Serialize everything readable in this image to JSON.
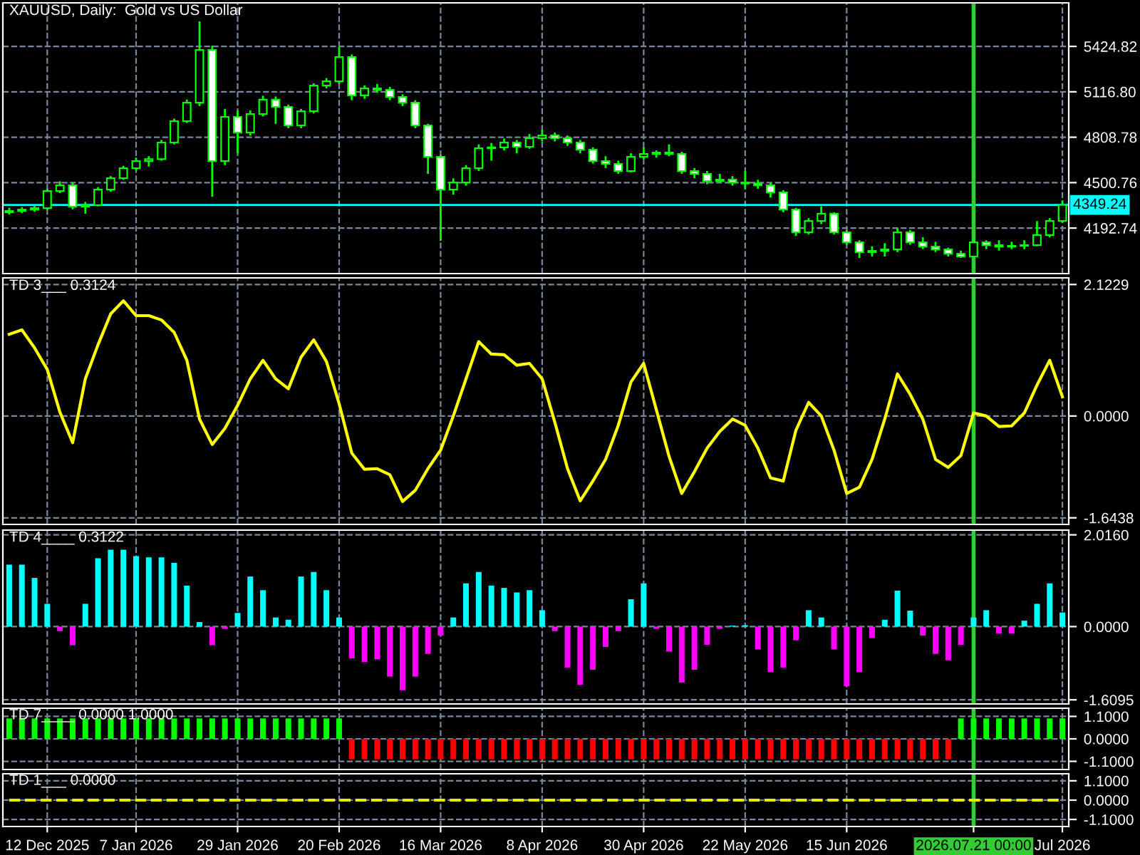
{
  "chart_data": [
    {
      "type": "candlestick",
      "title": "XAUUSD, Daily:  Gold vs US Dollar",
      "categories": [
        null,
        null,
        null,
        "12 Dec 2025",
        null,
        null,
        null,
        null,
        null,
        null,
        "7 Jan 2026",
        null,
        null,
        null,
        null,
        null,
        null,
        null,
        "29 Jan 2026",
        null,
        null,
        null,
        null,
        null,
        null,
        null,
        "20 Feb 2026",
        null,
        null,
        null,
        null,
        null,
        null,
        null,
        "16 Mar 2026",
        null,
        null,
        null,
        null,
        null,
        null,
        null,
        "8 Apr 2026",
        null,
        null,
        null,
        null,
        null,
        null,
        null,
        "30 Apr 2026",
        null,
        null,
        null,
        null,
        null,
        null,
        null,
        "22 May 2026",
        null,
        null,
        null,
        null,
        null,
        null,
        null,
        "15 Jun 2026",
        null,
        null,
        null,
        null,
        null,
        null,
        null,
        null,
        null,
        "2026.07.21 00:00",
        null,
        null,
        null,
        null,
        null,
        null,
        "Jul 2026"
      ],
      "ohlc": [
        [
          4300,
          4330,
          4285,
          4309
        ],
        [
          4309,
          4335,
          4295,
          4318
        ],
        [
          4318,
          4345,
          4305,
          4328
        ],
        [
          4328,
          4460,
          4315,
          4444
        ],
        [
          4444,
          4510,
          4430,
          4483
        ],
        [
          4483,
          4500,
          4320,
          4338
        ],
        [
          4338,
          4370,
          4290,
          4348
        ],
        [
          4348,
          4470,
          4340,
          4454
        ],
        [
          4454,
          4545,
          4440,
          4531
        ],
        [
          4531,
          4615,
          4520,
          4599
        ],
        [
          4599,
          4670,
          4585,
          4647
        ],
        [
          4647,
          4680,
          4610,
          4660
        ],
        [
          4660,
          4790,
          4650,
          4773
        ],
        [
          4773,
          4935,
          4760,
          4918
        ],
        [
          4918,
          5065,
          4905,
          5043
        ],
        [
          5043,
          5594,
          5020,
          5400
        ],
        [
          5400,
          5430,
          4405,
          4647
        ],
        [
          4647,
          5000,
          4620,
          4947
        ],
        [
          4947,
          4990,
          4700,
          4840
        ],
        [
          4840,
          4990,
          4820,
          4966
        ],
        [
          4966,
          5090,
          4950,
          5063
        ],
        [
          5063,
          5085,
          4900,
          5014
        ],
        [
          5014,
          5030,
          4870,
          4889
        ],
        [
          4889,
          5000,
          4870,
          4985
        ],
        [
          4985,
          5175,
          4970,
          5159
        ],
        [
          5159,
          5210,
          5140,
          5188
        ],
        [
          5188,
          5420,
          5170,
          5352
        ],
        [
          5352,
          5370,
          5060,
          5092
        ],
        [
          5092,
          5160,
          5070,
          5140
        ],
        [
          5140,
          5170,
          5110,
          5130
        ],
        [
          5130,
          5150,
          5060,
          5082
        ],
        [
          5082,
          5100,
          5020,
          5043
        ],
        [
          5043,
          5060,
          4870,
          4889
        ],
        [
          4889,
          4900,
          4560,
          4676
        ],
        [
          4676,
          4690,
          4106,
          4454
        ],
        [
          4454,
          4530,
          4420,
          4502
        ],
        [
          4502,
          4620,
          4480,
          4599
        ],
        [
          4599,
          4760,
          4580,
          4734
        ],
        [
          4734,
          4770,
          4650,
          4740
        ],
        [
          4740,
          4800,
          4720,
          4773
        ],
        [
          4773,
          4790,
          4700,
          4744
        ],
        [
          4744,
          4830,
          4730,
          4802
        ],
        [
          4802,
          4860,
          4780,
          4821
        ],
        [
          4821,
          4840,
          4780,
          4802
        ],
        [
          4802,
          4820,
          4750,
          4773
        ],
        [
          4773,
          4790,
          4700,
          4724
        ],
        [
          4724,
          4740,
          4630,
          4647
        ],
        [
          4647,
          4680,
          4600,
          4628
        ],
        [
          4628,
          4650,
          4560,
          4579
        ],
        [
          4579,
          4700,
          4570,
          4676
        ],
        [
          4676,
          4740,
          4660,
          4695
        ],
        [
          4695,
          4720,
          4670,
          4705
        ],
        [
          4705,
          4760,
          4680,
          4695
        ],
        [
          4695,
          4710,
          4560,
          4579
        ],
        [
          4579,
          4600,
          4530,
          4560
        ],
        [
          4560,
          4580,
          4490,
          4512
        ],
        [
          4512,
          4560,
          4500,
          4521
        ],
        [
          4521,
          4545,
          4480,
          4502
        ],
        [
          4502,
          4580,
          4460,
          4495
        ],
        [
          4495,
          4520,
          4460,
          4483
        ],
        [
          4483,
          4500,
          4400,
          4434
        ],
        [
          4434,
          4450,
          4300,
          4318
        ],
        [
          4318,
          4330,
          4140,
          4164
        ],
        [
          4164,
          4260,
          4150,
          4241
        ],
        [
          4241,
          4340,
          4220,
          4290
        ],
        [
          4290,
          4300,
          4150,
          4164
        ],
        [
          4164,
          4180,
          4080,
          4096
        ],
        [
          4096,
          4110,
          3990,
          4029
        ],
        [
          4029,
          4070,
          4000,
          4038
        ],
        [
          4038,
          4090,
          4000,
          4048
        ],
        [
          4048,
          4190,
          4030,
          4164
        ],
        [
          4164,
          4180,
          4080,
          4096
        ],
        [
          4096,
          4130,
          4050,
          4067
        ],
        [
          4067,
          4100,
          4030,
          4048
        ],
        [
          4048,
          4060,
          4000,
          4019
        ],
        [
          4019,
          4040,
          3990,
          4000
        ],
        [
          4000,
          4120,
          3990,
          4096
        ],
        [
          4096,
          4110,
          4050,
          4077
        ],
        [
          4077,
          4110,
          4040,
          4067
        ],
        [
          4067,
          4100,
          4050,
          4072
        ],
        [
          4072,
          4110,
          4050,
          4077
        ],
        [
          4077,
          4240,
          4070,
          4145
        ],
        [
          4145,
          4260,
          4130,
          4241
        ],
        [
          4241,
          4380,
          4230,
          4349
        ]
      ],
      "color": "#00ff00",
      "ylim": [
        3884,
        5720
      ],
      "yticks": [
        5424.82,
        {
          "value": 5116.8,
          "label": "5116.80"
        },
        4808.78,
        4500.76,
        4192.74
      ],
      "grid": true,
      "tick_labels": "y",
      "ref_lines": [
        {
          "axis": "y",
          "value": 4349.24,
          "label": "4349.24",
          "color": "#00ffff"
        },
        {
          "axis": "x",
          "value": "2026.07.21 00:00",
          "color": "#32cd32"
        }
      ]
    },
    {
      "type": "line",
      "title": "TD 3___ 0.3124",
      "categories": [
        null,
        null,
        null,
        "12 Dec 2025",
        null,
        null,
        null,
        null,
        null,
        null,
        "7 Jan 2026",
        null,
        null,
        null,
        null,
        null,
        null,
        null,
        "29 Jan 2026",
        null,
        null,
        null,
        null,
        null,
        null,
        null,
        "20 Feb 2026",
        null,
        null,
        null,
        null,
        null,
        null,
        null,
        "16 Mar 2026",
        null,
        null,
        null,
        null,
        null,
        null,
        null,
        "8 Apr 2026",
        null,
        null,
        null,
        null,
        null,
        null,
        null,
        "30 Apr 2026",
        null,
        null,
        null,
        null,
        null,
        null,
        null,
        "22 May 2026",
        null,
        null,
        null,
        null,
        null,
        null,
        null,
        "15 Jun 2026",
        null,
        null,
        null,
        null,
        null,
        null,
        null,
        null,
        null,
        "2026.07.21 00:00",
        null,
        null,
        null,
        null,
        null,
        null,
        "Jul 2026"
      ],
      "series": [
        {
          "color": "#ffff00",
          "values": [
            1.32,
            1.39,
            1.1,
            0.75,
            0.06,
            -0.43,
            0.6,
            1.15,
            1.65,
            1.86,
            1.62,
            1.62,
            1.55,
            1.35,
            0.9,
            -0.05,
            -0.46,
            -0.2,
            0.17,
            0.6,
            0.9,
            0.6,
            0.44,
            0.95,
            1.23,
            0.88,
            0.2,
            -0.6,
            -0.86,
            -0.85,
            -0.95,
            -1.38,
            -1.2,
            -0.85,
            -0.55,
            0.0,
            0.6,
            1.2,
            1.0,
            0.99,
            0.82,
            0.85,
            0.6,
            -0.1,
            -0.85,
            -1.37,
            -1.05,
            -0.7,
            -0.15,
            0.55,
            0.85,
            0.1,
            -0.65,
            -1.25,
            -0.9,
            -0.52,
            -0.25,
            -0.05,
            -0.15,
            -0.52,
            -1.0,
            -1.05,
            -0.23,
            0.22,
            0.0,
            -0.55,
            -1.25,
            -1.15,
            -0.7,
            -0.05,
            0.68,
            0.35,
            -0.05,
            -0.7,
            -0.83,
            -0.64,
            0.05,
            0.0,
            -0.17,
            -0.16,
            0.05,
            0.5,
            0.9,
            0.31
          ]
        }
      ],
      "ylim": [
        -1.75,
        2.23
      ],
      "yticks": [
        2.1229,
        {
          "value": 0,
          "label": "0.0000"
        },
        -1.6438
      ],
      "grid": true,
      "tick_labels": "y",
      "line_style": "solid",
      "ref_lines": [
        {
          "axis": "x",
          "value": "2026.07.21 00:00",
          "color": "#32cd32"
        }
      ]
    },
    {
      "type": "bar",
      "title": "TD 4____ 0.3122",
      "categories": [
        null,
        null,
        null,
        "12 Dec 2025",
        null,
        null,
        null,
        null,
        null,
        null,
        "7 Jan 2026",
        null,
        null,
        null,
        null,
        null,
        null,
        null,
        "29 Jan 2026",
        null,
        null,
        null,
        null,
        null,
        null,
        null,
        "20 Feb 2026",
        null,
        null,
        null,
        null,
        null,
        null,
        null,
        "16 Mar 2026",
        null,
        null,
        null,
        null,
        null,
        null,
        null,
        "8 Apr 2026",
        null,
        null,
        null,
        null,
        null,
        null,
        null,
        "30 Apr 2026",
        null,
        null,
        null,
        null,
        null,
        null,
        null,
        "22 May 2026",
        null,
        null,
        null,
        null,
        null,
        null,
        null,
        "15 Jun 2026",
        null,
        null,
        null,
        null,
        null,
        null,
        null,
        null,
        null,
        "2026.07.21 00:00",
        null,
        null,
        null,
        null,
        null,
        null,
        "Jul 2026"
      ],
      "values": [
        1.36,
        1.36,
        1.07,
        0.5,
        -0.1,
        -0.41,
        0.5,
        1.5,
        1.69,
        1.69,
        1.55,
        1.52,
        1.52,
        1.4,
        0.9,
        0.1,
        -0.41,
        -0.05,
        0.3,
        1.1,
        0.8,
        0.2,
        0.15,
        1.1,
        1.2,
        0.8,
        0.2,
        -0.7,
        -0.78,
        -0.72,
        -1.1,
        -1.4,
        -1.1,
        -0.6,
        -0.2,
        0.2,
        0.95,
        1.2,
        0.9,
        0.85,
        0.75,
        0.8,
        0.36,
        -0.1,
        -0.9,
        -1.28,
        -0.95,
        -0.45,
        -0.1,
        0.6,
        0.95,
        -0.05,
        -0.55,
        -1.23,
        -0.95,
        -0.4,
        -0.05,
        0.02,
        0.03,
        -0.5,
        -1.0,
        -0.9,
        -0.3,
        0.36,
        0.2,
        -0.5,
        -1.31,
        -1.0,
        -0.25,
        0.15,
        0.79,
        0.35,
        -0.2,
        -0.6,
        -0.74,
        -0.4,
        0.2,
        0.36,
        -0.15,
        -0.15,
        0.13,
        0.5,
        0.95,
        0.31
      ],
      "colors": [
        "#00ffff",
        "#00ffff",
        "#00ffff",
        "#00ffff",
        "#ff00ff",
        "#ff00ff",
        "#00ffff",
        "#00ffff",
        "#00ffff",
        "#00ffff",
        "#00ffff",
        "#00ffff",
        "#00ffff",
        "#00ffff",
        "#00ffff",
        "#00ffff",
        "#ff00ff",
        "#ff00ff",
        "#00ffff",
        "#00ffff",
        "#00ffff",
        "#00ffff",
        "#00ffff",
        "#00ffff",
        "#00ffff",
        "#00ffff",
        "#00ffff",
        "#ff00ff",
        "#ff00ff",
        "#ff00ff",
        "#ff00ff",
        "#ff00ff",
        "#ff00ff",
        "#ff00ff",
        "#ff00ff",
        "#00ffff",
        "#00ffff",
        "#00ffff",
        "#00ffff",
        "#00ffff",
        "#00ffff",
        "#00ffff",
        "#00ffff",
        "#ff00ff",
        "#ff00ff",
        "#ff00ff",
        "#ff00ff",
        "#ff00ff",
        "#ff00ff",
        "#00ffff",
        "#00ffff",
        "#ff00ff",
        "#ff00ff",
        "#ff00ff",
        "#ff00ff",
        "#ff00ff",
        "#ff00ff",
        "#00ffff",
        "#00ffff",
        "#ff00ff",
        "#ff00ff",
        "#ff00ff",
        "#ff00ff",
        "#00ffff",
        "#00ffff",
        "#ff00ff",
        "#ff00ff",
        "#ff00ff",
        "#ff00ff",
        "#00ffff",
        "#00ffff",
        "#00ffff",
        "#ff00ff",
        "#ff00ff",
        "#ff00ff",
        "#ff00ff",
        "#00ffff",
        "#00ffff",
        "#ff00ff",
        "#ff00ff",
        "#00ffff",
        "#00ffff",
        "#00ffff",
        "#00ffff"
      ],
      "ylim": [
        -1.7,
        2.12
      ],
      "yticks": [
        {
          "value": 2.016,
          "label": "2.0160"
        },
        {
          "value": 0,
          "label": "0.0000"
        },
        -1.6095
      ],
      "grid": true,
      "tick_labels": "y",
      "ref_lines": [
        {
          "axis": "x",
          "value": "2026.07.21 00:00",
          "color": "#32cd32"
        }
      ]
    },
    {
      "type": "bar",
      "title": "TD 7____ 0.0000 1.0000",
      "categories": [
        null,
        null,
        null,
        "12 Dec 2025",
        null,
        null,
        null,
        null,
        null,
        null,
        "7 Jan 2026",
        null,
        null,
        null,
        null,
        null,
        null,
        null,
        "29 Jan 2026",
        null,
        null,
        null,
        null,
        null,
        null,
        null,
        "20 Feb 2026",
        null,
        null,
        null,
        null,
        null,
        null,
        null,
        "16 Mar 2026",
        null,
        null,
        null,
        null,
        null,
        null,
        null,
        "8 Apr 2026",
        null,
        null,
        null,
        null,
        null,
        null,
        null,
        "30 Apr 2026",
        null,
        null,
        null,
        null,
        null,
        null,
        null,
        "22 May 2026",
        null,
        null,
        null,
        null,
        null,
        null,
        null,
        "15 Jun 2026",
        null,
        null,
        null,
        null,
        null,
        null,
        null,
        null,
        null,
        "2026.07.21 00:00",
        null,
        null,
        null,
        null,
        null,
        null,
        "Jul 2026"
      ],
      "values": [
        1,
        1,
        1,
        1,
        1,
        1,
        1,
        1,
        1,
        1,
        1,
        1,
        1,
        1,
        1,
        1,
        1,
        1,
        1,
        1,
        1,
        1,
        1,
        1,
        1,
        1,
        1,
        -1,
        -1,
        -1,
        -1,
        -1,
        -1,
        -1,
        -1,
        -1,
        -1,
        -1,
        -1,
        -1,
        -1,
        -1,
        -1,
        -1,
        -1,
        -1,
        -1,
        -1,
        -1,
        -1,
        -1,
        -1,
        -1,
        -1,
        -1,
        -1,
        -1,
        -1,
        -1,
        -1,
        -1,
        -1,
        -1,
        -1,
        -1,
        -1,
        -1,
        -1,
        -1,
        -1,
        -1,
        -1,
        -1,
        -1,
        -1,
        1,
        1,
        1,
        1,
        1,
        1,
        1,
        1,
        1
      ],
      "colors": [
        "#00ff00",
        "#00ff00",
        "#00ff00",
        "#00ff00",
        "#00ff00",
        "#00ff00",
        "#00ff00",
        "#00ff00",
        "#00ff00",
        "#00ff00",
        "#00ff00",
        "#00ff00",
        "#00ff00",
        "#00ff00",
        "#00ff00",
        "#00ff00",
        "#00ff00",
        "#00ff00",
        "#00ff00",
        "#00ff00",
        "#00ff00",
        "#00ff00",
        "#00ff00",
        "#00ff00",
        "#00ff00",
        "#00ff00",
        "#00ff00",
        "#ff0000",
        "#ff0000",
        "#ff0000",
        "#ff0000",
        "#ff0000",
        "#ff0000",
        "#ff0000",
        "#ff0000",
        "#ff0000",
        "#ff0000",
        "#ff0000",
        "#ff0000",
        "#ff0000",
        "#ff0000",
        "#ff0000",
        "#ff0000",
        "#ff0000",
        "#ff0000",
        "#ff0000",
        "#ff0000",
        "#ff0000",
        "#ff0000",
        "#ff0000",
        "#ff0000",
        "#ff0000",
        "#ff0000",
        "#ff0000",
        "#ff0000",
        "#ff0000",
        "#ff0000",
        "#ff0000",
        "#ff0000",
        "#ff0000",
        "#ff0000",
        "#ff0000",
        "#ff0000",
        "#ff0000",
        "#ff0000",
        "#ff0000",
        "#ff0000",
        "#ff0000",
        "#ff0000",
        "#ff0000",
        "#ff0000",
        "#ff0000",
        "#ff0000",
        "#ff0000",
        "#ff0000",
        "#00ff00",
        "#00ff00",
        "#00ff00",
        "#00ff00",
        "#00ff00",
        "#00ff00",
        "#00ff00",
        "#00ff00",
        "#00ff00"
      ],
      "ylim": [
        -1.5,
        1.5
      ],
      "yticks": [
        {
          "value": 1.1,
          "label": "1.1000"
        },
        {
          "value": 0,
          "label": "0.0000"
        },
        {
          "value": -1.1,
          "label": "-1.1000"
        }
      ],
      "grid": true,
      "tick_labels": "y",
      "ref_lines": [
        {
          "axis": "x",
          "value": "2026.07.21 00:00",
          "color": "#32cd32"
        }
      ]
    },
    {
      "type": "line",
      "title": "TD 1___ 0.0000",
      "categories": [
        null,
        null,
        null,
        "12 Dec 2025",
        null,
        null,
        null,
        null,
        null,
        null,
        "7 Jan 2026",
        null,
        null,
        null,
        null,
        null,
        null,
        null,
        "29 Jan 2026",
        null,
        null,
        null,
        null,
        null,
        null,
        null,
        "20 Feb 2026",
        null,
        null,
        null,
        null,
        null,
        null,
        null,
        "16 Mar 2026",
        null,
        null,
        null,
        null,
        null,
        null,
        null,
        "8 Apr 2026",
        null,
        null,
        null,
        null,
        null,
        null,
        null,
        "30 Apr 2026",
        null,
        null,
        null,
        null,
        null,
        null,
        null,
        "22 May 2026",
        null,
        null,
        null,
        null,
        null,
        null,
        null,
        "15 Jun 2026",
        null,
        null,
        null,
        null,
        null,
        null,
        null,
        null,
        null,
        "2026.07.21 00:00",
        null,
        null,
        null,
        null,
        null,
        null,
        "Jul 2026"
      ],
      "series": [
        {
          "color": "#e8e800",
          "values": [
            0,
            0,
            0,
            0,
            0,
            0,
            0,
            0,
            0,
            0,
            0,
            0,
            0,
            0,
            0,
            0,
            0,
            0,
            0,
            0,
            0,
            0,
            0,
            0,
            0,
            0,
            0,
            0,
            0,
            0,
            0,
            0,
            0,
            0,
            0,
            0,
            0,
            0,
            0,
            0,
            0,
            0,
            0,
            0,
            0,
            0,
            0,
            0,
            0,
            0,
            0,
            0,
            0,
            0,
            0,
            0,
            0,
            0,
            0,
            0,
            0,
            0,
            0,
            0,
            0,
            0,
            0,
            0,
            0,
            0,
            0,
            0,
            0,
            0,
            0,
            0,
            0,
            0,
            0,
            0,
            0,
            0,
            0,
            0
          ]
        }
      ],
      "ylim": [
        -1.5,
        1.5
      ],
      "yticks": [
        {
          "value": 1.1,
          "label": "1.1000"
        },
        {
          "value": 0,
          "label": "0.0000"
        },
        {
          "value": -1.1,
          "label": "-1.1000"
        }
      ],
      "grid": true,
      "line_style": "dashed",
      "ref_lines": [
        {
          "axis": "x",
          "value": "2026.07.21 00:00",
          "color": "#32cd32"
        }
      ]
    }
  ]
}
